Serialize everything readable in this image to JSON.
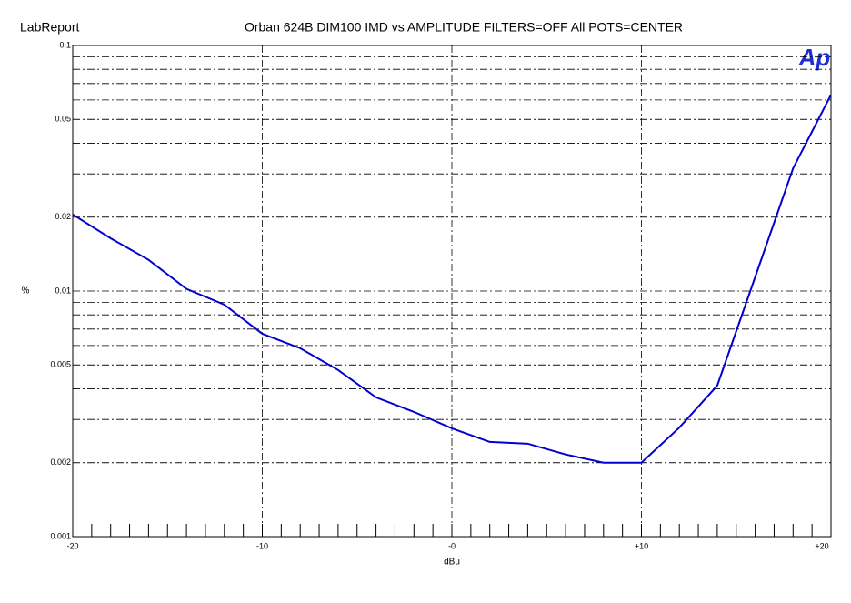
{
  "chart_data": {
    "type": "line",
    "app_title": "LabReport",
    "logo": "Ap",
    "title": "Orban 624B DIM100 IMD vs AMPLITUDE FILTERS=OFF All POTS=CENTER",
    "x_label": "dBu",
    "y_label": "%",
    "x": [
      -20,
      -18,
      -16,
      -14,
      -12,
      -10,
      -8,
      -6,
      -4,
      -2,
      0,
      2,
      4,
      6,
      8,
      10,
      12,
      14,
      16,
      18,
      20
    ],
    "series": [
      {
        "name": "IMD",
        "color": "#0000d0",
        "values": [
          0.0205,
          0.0164,
          0.0134,
          0.0102,
          0.0088,
          0.0067,
          0.00585,
          0.00477,
          0.00369,
          0.00322,
          0.00276,
          0.00243,
          0.00239,
          0.00216,
          0.002,
          0.002,
          0.00278,
          0.00412,
          0.0114,
          0.0316,
          0.063
        ]
      }
    ],
    "xlim": [
      -20,
      20
    ],
    "xticks": [
      -20,
      -10,
      {
        "value": 0,
        "label": "-0"
      },
      {
        "value": 10,
        "label": "+10"
      },
      {
        "value": 20,
        "label": "+20"
      }
    ],
    "ylim": [
      0.001,
      0.1
    ],
    "y_log": true,
    "yticks": [
      0.001,
      0.002,
      0.005,
      0.01,
      0.02,
      0.05,
      0.1
    ],
    "grid": true,
    "minor_grid": true,
    "x_minor_ticks": true
  }
}
